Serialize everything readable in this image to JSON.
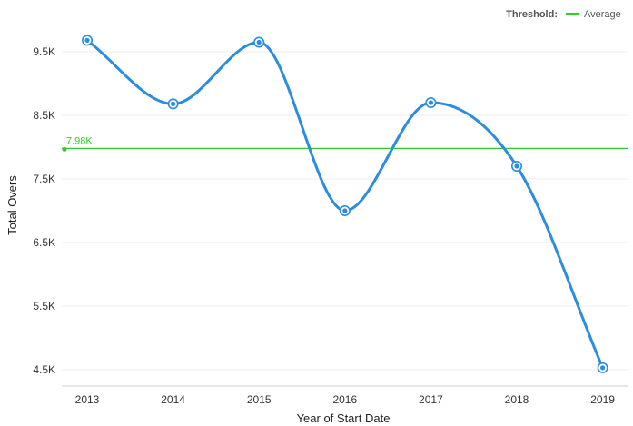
{
  "legend": {
    "title": "Threshold:",
    "entries": [
      {
        "name": "Average",
        "color": "#2ecc2e"
      }
    ]
  },
  "chart_data": {
    "type": "line",
    "categories": [
      "2013",
      "2014",
      "2015",
      "2016",
      "2017",
      "2018",
      "2019"
    ],
    "series": [
      {
        "color": "#2b8ce0",
        "values": [
          9680,
          8680,
          9650,
          7000,
          8700,
          7700,
          4530
        ]
      }
    ],
    "threshold": {
      "name": "Average",
      "value": 7980,
      "label": "7.98K",
      "color": "#2ecc2e"
    },
    "xlabel": "Year of Start Date",
    "ylabel": "Total Overs",
    "yticks": [
      {
        "value": 4500,
        "label": "4.5K"
      },
      {
        "value": 5500,
        "label": "5.5K"
      },
      {
        "value": 6500,
        "label": "6.5K"
      },
      {
        "value": 7500,
        "label": "7.5K"
      },
      {
        "value": 8500,
        "label": "8.5K"
      },
      {
        "value": 9500,
        "label": "9.5K"
      }
    ],
    "ylim": [
      4500,
      9500
    ],
    "grid": true,
    "legend_position": "top-right",
    "smooth": true
  }
}
